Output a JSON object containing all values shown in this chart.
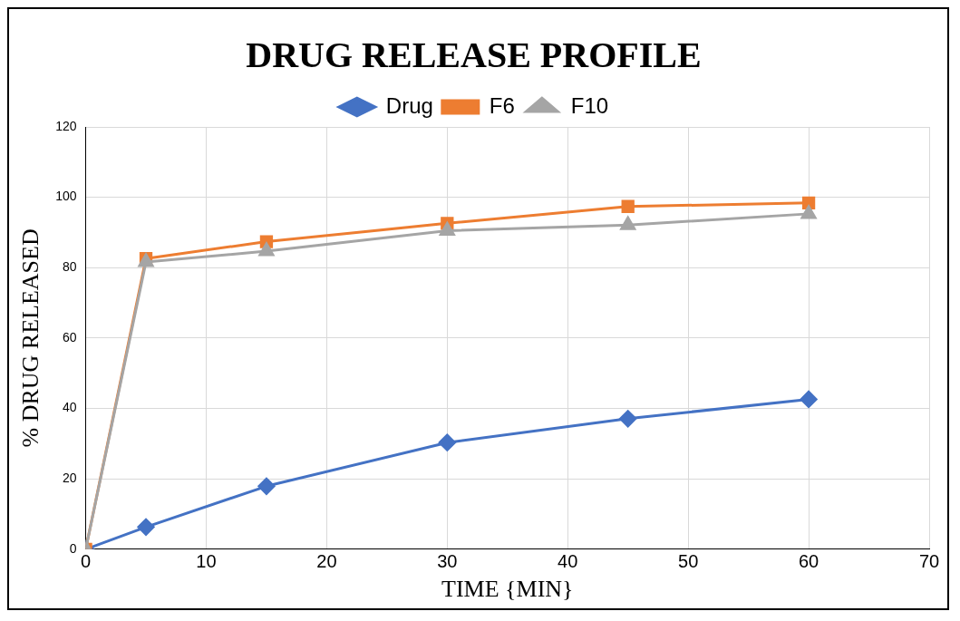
{
  "chart_data": {
    "type": "line",
    "title": "DRUG RELEASE PROFILE",
    "xlabel": "TIME {MIN}",
    "ylabel": "% DRUG RELEASED",
    "x": [
      0,
      5,
      15,
      30,
      45,
      60
    ],
    "series": [
      {
        "name": "Drug",
        "color": "#4472c4",
        "marker": "diamond",
        "values": [
          0,
          6.3,
          17.9,
          30.3,
          37.1,
          42.6
        ]
      },
      {
        "name": "F6",
        "color": "#ed7d31",
        "marker": "square",
        "values": [
          0,
          82.6,
          87.4,
          92.6,
          97.4,
          98.4
        ]
      },
      {
        "name": "F10",
        "color": "#a5a5a5",
        "marker": "triangle",
        "values": [
          0,
          81.6,
          84.7,
          90.5,
          92.1,
          95.3
        ]
      }
    ],
    "xlim": [
      0,
      70
    ],
    "xticks": [
      0,
      10,
      20,
      30,
      40,
      50,
      60,
      70
    ],
    "ylim": [
      0,
      120
    ],
    "yticks": [
      0,
      20,
      40,
      60,
      80,
      100,
      120
    ],
    "grid": true,
    "legend": "top",
    "line_style": "solid"
  }
}
